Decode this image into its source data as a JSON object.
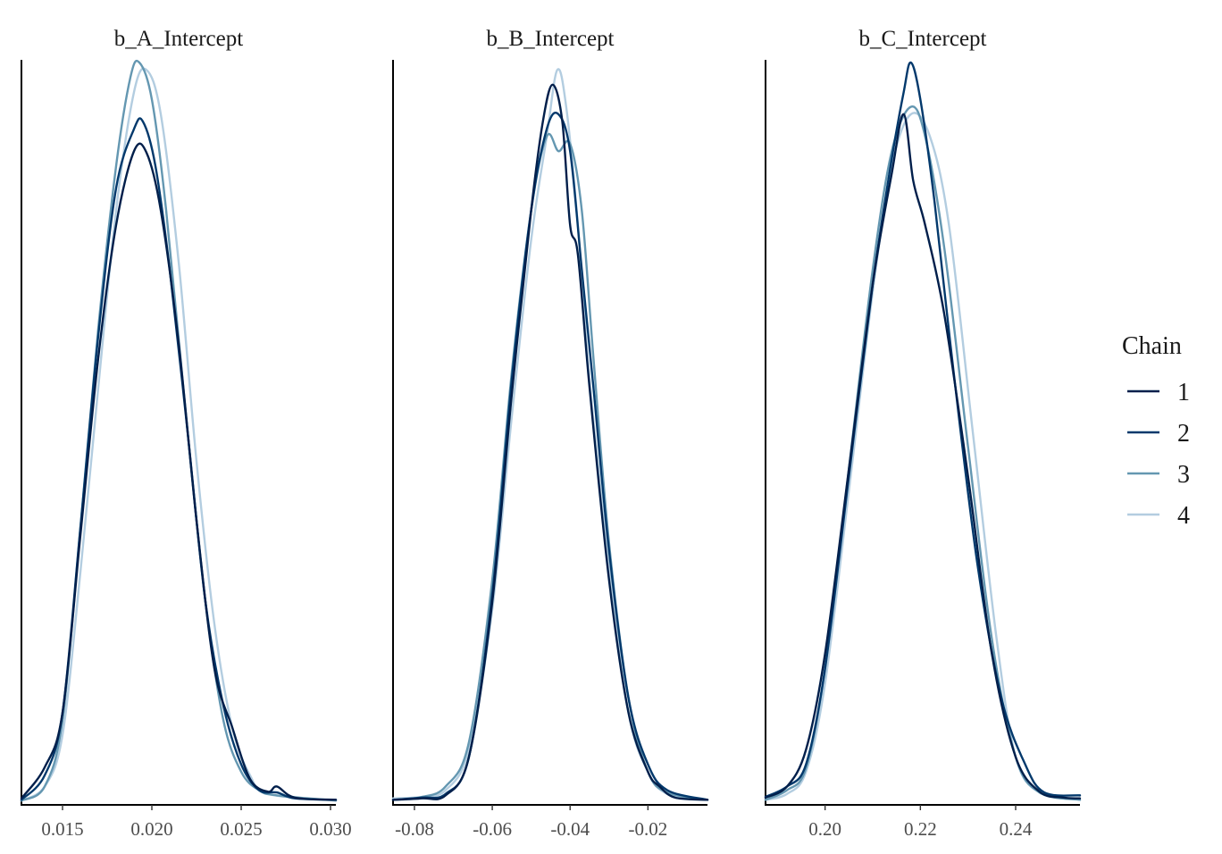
{
  "colors": {
    "chain1": "#011f4b",
    "chain2": "#03396c",
    "chain3": "#6497b1",
    "chain4": "#b3cde0"
  },
  "legend": {
    "title": "Chain",
    "items": [
      "1",
      "2",
      "3",
      "4"
    ],
    "position": "right"
  },
  "chart_data": [
    {
      "type": "line",
      "title": "b_A_Intercept",
      "xlim": [
        0.0127,
        0.0303
      ],
      "ylim": [
        0,
        1
      ],
      "x_ticks": [
        0.015,
        0.02,
        0.025,
        0.03
      ],
      "x_tick_labels": [
        "0.015",
        "0.020",
        "0.025",
        "0.030"
      ],
      "series": [
        {
          "name": "1",
          "color": "#011f4b",
          "points": [
            [
              0.0127,
              0.004
            ],
            [
              0.014,
              0.046
            ],
            [
              0.015,
              0.12
            ],
            [
              0.016,
              0.36
            ],
            [
              0.017,
              0.6
            ],
            [
              0.018,
              0.78
            ],
            [
              0.019,
              0.88
            ],
            [
              0.0197,
              0.878
            ],
            [
              0.0205,
              0.8
            ],
            [
              0.0215,
              0.62
            ],
            [
              0.0225,
              0.38
            ],
            [
              0.0235,
              0.18
            ],
            [
              0.0245,
              0.1
            ],
            [
              0.0255,
              0.03
            ],
            [
              0.0265,
              0.013
            ],
            [
              0.027,
              0.02
            ],
            [
              0.028,
              0.005
            ],
            [
              0.0303,
              0.002
            ]
          ]
        },
        {
          "name": "2",
          "color": "#03396c",
          "points": [
            [
              0.0127,
              0.002
            ],
            [
              0.014,
              0.035
            ],
            [
              0.015,
              0.12
            ],
            [
              0.016,
              0.37
            ],
            [
              0.017,
              0.63
            ],
            [
              0.018,
              0.83
            ],
            [
              0.019,
              0.91
            ],
            [
              0.0195,
              0.92
            ],
            [
              0.0202,
              0.86
            ],
            [
              0.021,
              0.72
            ],
            [
              0.022,
              0.5
            ],
            [
              0.023,
              0.27
            ],
            [
              0.024,
              0.13
            ],
            [
              0.025,
              0.05
            ],
            [
              0.026,
              0.015
            ],
            [
              0.027,
              0.012
            ],
            [
              0.028,
              0.004
            ],
            [
              0.0303,
              0.002
            ]
          ]
        },
        {
          "name": "3",
          "color": "#6497b1",
          "points": [
            [
              0.0127,
              0.001
            ],
            [
              0.014,
              0.02
            ],
            [
              0.015,
              0.11
            ],
            [
              0.016,
              0.37
            ],
            [
              0.017,
              0.64
            ],
            [
              0.018,
              0.86
            ],
            [
              0.0188,
              0.98
            ],
            [
              0.0193,
              1.0
            ],
            [
              0.02,
              0.95
            ],
            [
              0.0208,
              0.8
            ],
            [
              0.022,
              0.5
            ],
            [
              0.023,
              0.27
            ],
            [
              0.024,
              0.11
            ],
            [
              0.025,
              0.04
            ],
            [
              0.026,
              0.015
            ],
            [
              0.027,
              0.008
            ],
            [
              0.0303,
              0.001
            ]
          ]
        },
        {
          "name": "4",
          "color": "#b3cde0",
          "points": [
            [
              0.0127,
              0.001
            ],
            [
              0.014,
              0.02
            ],
            [
              0.015,
              0.09
            ],
            [
              0.016,
              0.31
            ],
            [
              0.017,
              0.56
            ],
            [
              0.018,
              0.8
            ],
            [
              0.019,
              0.96
            ],
            [
              0.0197,
              0.99
            ],
            [
              0.0205,
              0.93
            ],
            [
              0.0215,
              0.73
            ],
            [
              0.0225,
              0.46
            ],
            [
              0.0235,
              0.24
            ],
            [
              0.0245,
              0.1
            ],
            [
              0.0255,
              0.035
            ],
            [
              0.0265,
              0.01
            ],
            [
              0.0303,
              0.001
            ]
          ]
        }
      ]
    },
    {
      "type": "line",
      "title": "b_B_Intercept",
      "xlim": [
        -0.0855,
        -0.0047
      ],
      "ylim": [
        0,
        1
      ],
      "x_ticks": [
        -0.08,
        -0.06,
        -0.04,
        -0.02
      ],
      "x_tick_labels": [
        "-0.08",
        "-0.06",
        "-0.04",
        "-0.02"
      ],
      "series": [
        {
          "name": "1",
          "color": "#011f4b",
          "points": [
            [
              -0.0855,
              0.002
            ],
            [
              -0.078,
              0.004
            ],
            [
              -0.072,
              0.008
            ],
            [
              -0.066,
              0.06
            ],
            [
              -0.06,
              0.27
            ],
            [
              -0.055,
              0.55
            ],
            [
              -0.05,
              0.8
            ],
            [
              -0.047,
              0.92
            ],
            [
              -0.0445,
              0.97
            ],
            [
              -0.042,
              0.92
            ],
            [
              -0.04,
              0.78
            ],
            [
              -0.038,
              0.74
            ],
            [
              -0.035,
              0.56
            ],
            [
              -0.03,
              0.3
            ],
            [
              -0.025,
              0.12
            ],
            [
              -0.02,
              0.04
            ],
            [
              -0.017,
              0.02
            ],
            [
              -0.013,
              0.005
            ],
            [
              -0.0047,
              0.002
            ]
          ]
        },
        {
          "name": "2",
          "color": "#03396c",
          "points": [
            [
              -0.0855,
              0.002
            ],
            [
              -0.078,
              0.005
            ],
            [
              -0.072,
              0.01
            ],
            [
              -0.066,
              0.06
            ],
            [
              -0.06,
              0.28
            ],
            [
              -0.055,
              0.57
            ],
            [
              -0.05,
              0.8
            ],
            [
              -0.046,
              0.91
            ],
            [
              -0.043,
              0.93
            ],
            [
              -0.04,
              0.88
            ],
            [
              -0.037,
              0.72
            ],
            [
              -0.034,
              0.56
            ],
            [
              -0.03,
              0.34
            ],
            [
              -0.025,
              0.14
            ],
            [
              -0.02,
              0.05
            ],
            [
              -0.015,
              0.015
            ],
            [
              -0.0047,
              0.002
            ]
          ]
        },
        {
          "name": "3",
          "color": "#6497b1",
          "points": [
            [
              -0.0855,
              0.002
            ],
            [
              -0.078,
              0.006
            ],
            [
              -0.072,
              0.02
            ],
            [
              -0.066,
              0.08
            ],
            [
              -0.06,
              0.3
            ],
            [
              -0.055,
              0.58
            ],
            [
              -0.05,
              0.8
            ],
            [
              -0.046,
              0.9
            ],
            [
              -0.043,
              0.88
            ],
            [
              -0.04,
              0.89
            ],
            [
              -0.037,
              0.8
            ],
            [
              -0.034,
              0.6
            ],
            [
              -0.03,
              0.35
            ],
            [
              -0.025,
              0.14
            ],
            [
              -0.02,
              0.04
            ],
            [
              -0.015,
              0.012
            ],
            [
              -0.0047,
              0.002
            ]
          ]
        },
        {
          "name": "4",
          "color": "#b3cde0",
          "points": [
            [
              -0.0855,
              0.004
            ],
            [
              -0.078,
              0.006
            ],
            [
              -0.072,
              0.015
            ],
            [
              -0.066,
              0.07
            ],
            [
              -0.06,
              0.26
            ],
            [
              -0.055,
              0.52
            ],
            [
              -0.05,
              0.76
            ],
            [
              -0.046,
              0.9
            ],
            [
              -0.0433,
              0.99
            ],
            [
              -0.041,
              0.94
            ],
            [
              -0.038,
              0.78
            ],
            [
              -0.035,
              0.57
            ],
            [
              -0.03,
              0.32
            ],
            [
              -0.025,
              0.12
            ],
            [
              -0.02,
              0.04
            ],
            [
              -0.015,
              0.01
            ],
            [
              -0.0047,
              0.002
            ]
          ]
        }
      ]
    },
    {
      "type": "line",
      "title": "b_C_Intercept",
      "xlim": [
        0.1875,
        0.2535
      ],
      "ylim": [
        0,
        1
      ],
      "x_ticks": [
        0.2,
        0.22,
        0.24
      ],
      "x_tick_labels": [
        "0.20",
        "0.22",
        "0.24"
      ],
      "series": [
        {
          "name": "1",
          "color": "#011f4b",
          "points": [
            [
              0.1875,
              0.005
            ],
            [
              0.192,
              0.02
            ],
            [
              0.196,
              0.07
            ],
            [
              0.2,
              0.2
            ],
            [
              0.205,
              0.45
            ],
            [
              0.21,
              0.7
            ],
            [
              0.214,
              0.85
            ],
            [
              0.2165,
              0.93
            ],
            [
              0.2185,
              0.84
            ],
            [
              0.221,
              0.78
            ],
            [
              0.225,
              0.66
            ],
            [
              0.23,
              0.44
            ],
            [
              0.235,
              0.2
            ],
            [
              0.24,
              0.06
            ],
            [
              0.245,
              0.013
            ],
            [
              0.25,
              0.005
            ],
            [
              0.2535,
              0.004
            ]
          ]
        },
        {
          "name": "2",
          "color": "#03396c",
          "points": [
            [
              0.1875,
              0.006
            ],
            [
              0.192,
              0.02
            ],
            [
              0.196,
              0.05
            ],
            [
              0.2,
              0.18
            ],
            [
              0.205,
              0.44
            ],
            [
              0.21,
              0.7
            ],
            [
              0.214,
              0.87
            ],
            [
              0.2165,
              0.96
            ],
            [
              0.218,
              1.0
            ],
            [
              0.22,
              0.95
            ],
            [
              0.223,
              0.81
            ],
            [
              0.227,
              0.58
            ],
            [
              0.232,
              0.32
            ],
            [
              0.237,
              0.14
            ],
            [
              0.242,
              0.05
            ],
            [
              0.246,
              0.012
            ],
            [
              0.2535,
              0.008
            ]
          ]
        },
        {
          "name": "3",
          "color": "#6497b1",
          "points": [
            [
              0.1875,
              0.002
            ],
            [
              0.192,
              0.015
            ],
            [
              0.196,
              0.045
            ],
            [
              0.2,
              0.18
            ],
            [
              0.205,
              0.45
            ],
            [
              0.21,
              0.72
            ],
            [
              0.214,
              0.88
            ],
            [
              0.218,
              0.94
            ],
            [
              0.221,
              0.9
            ],
            [
              0.225,
              0.75
            ],
            [
              0.23,
              0.48
            ],
            [
              0.235,
              0.22
            ],
            [
              0.24,
              0.06
            ],
            [
              0.245,
              0.012
            ],
            [
              0.2535,
              0.002
            ]
          ]
        },
        {
          "name": "4",
          "color": "#b3cde0",
          "points": [
            [
              0.1875,
              0.002
            ],
            [
              0.192,
              0.01
            ],
            [
              0.196,
              0.04
            ],
            [
              0.2,
              0.16
            ],
            [
              0.205,
              0.42
            ],
            [
              0.21,
              0.69
            ],
            [
              0.214,
              0.86
            ],
            [
              0.218,
              0.93
            ],
            [
              0.222,
              0.9
            ],
            [
              0.226,
              0.78
            ],
            [
              0.231,
              0.5
            ],
            [
              0.236,
              0.22
            ],
            [
              0.24,
              0.06
            ],
            [
              0.245,
              0.012
            ],
            [
              0.2535,
              0.002
            ]
          ]
        }
      ]
    }
  ]
}
